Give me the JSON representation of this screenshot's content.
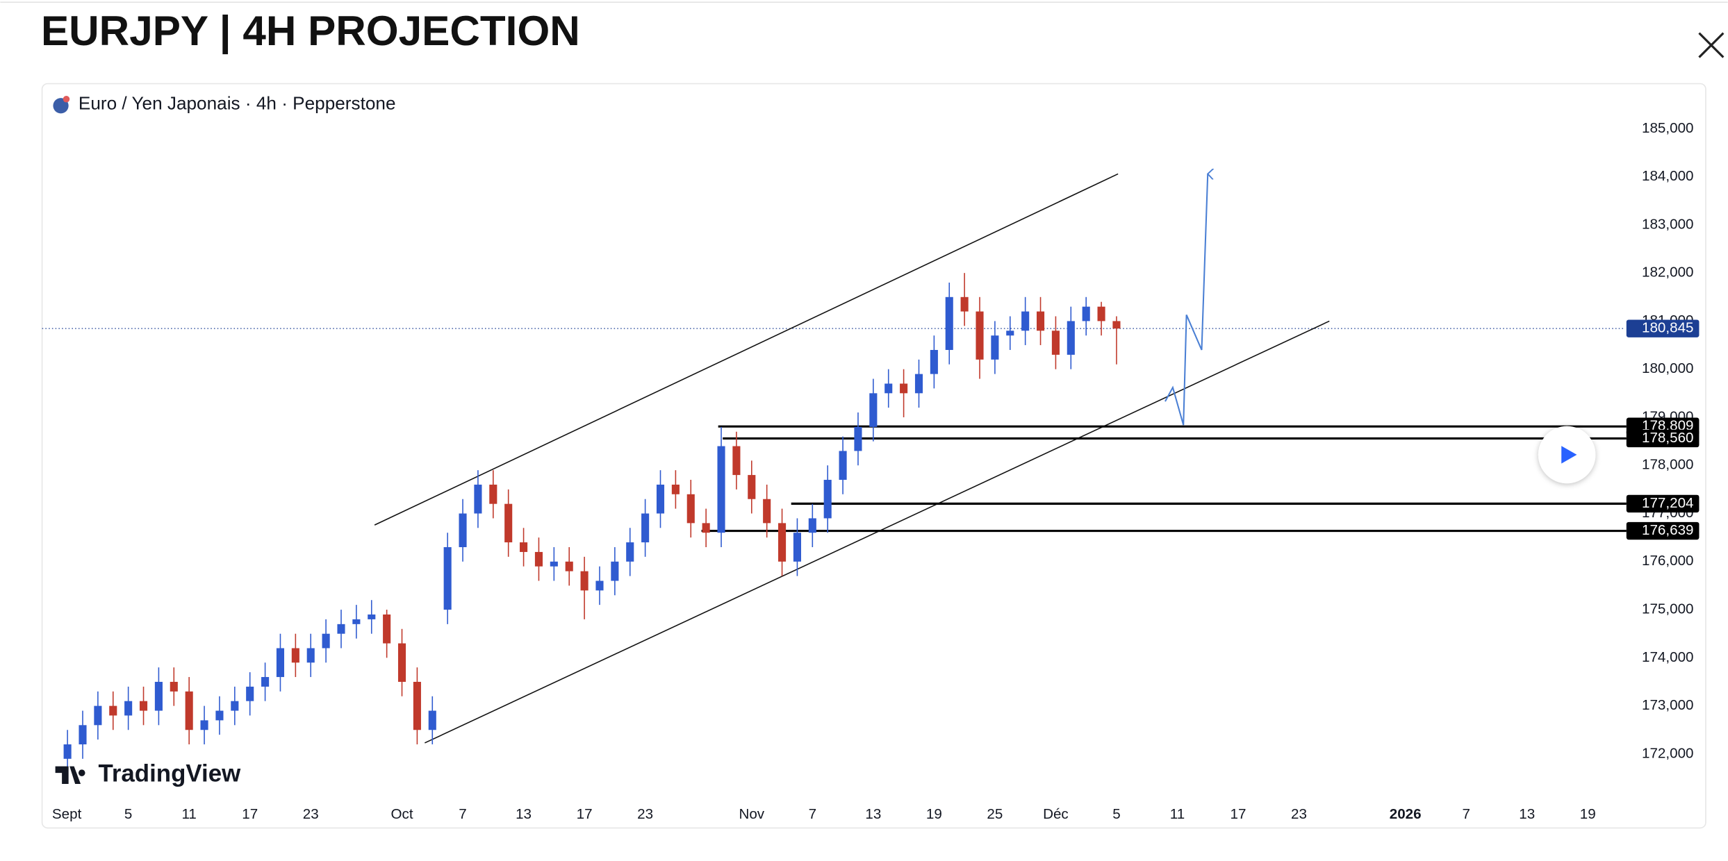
{
  "chart_data": {
    "type": "candlestick",
    "title": "EURJPY | 4H PROJECTION",
    "legend_text": "Euro / Yen Japonais · 4h · Pepperstone",
    "watermark": "TradingView",
    "up_color": "#2f5bd0",
    "down_color": "#c0392b",
    "x": [
      0,
      1,
      2,
      3,
      4,
      5,
      6,
      7,
      8,
      9,
      10,
      11,
      12,
      13,
      14,
      15,
      16,
      17,
      18,
      19,
      20,
      21,
      22,
      23,
      24,
      25,
      26,
      27,
      28,
      29,
      30,
      31,
      32,
      33,
      34,
      35,
      36,
      37,
      38,
      39,
      40,
      41,
      42,
      43,
      44,
      45,
      46,
      47,
      48,
      49,
      50,
      51,
      52,
      53,
      54,
      55,
      56,
      57,
      58,
      59,
      60,
      61,
      62,
      63,
      64,
      65,
      66,
      67,
      68,
      69
    ],
    "open": [
      171.9,
      172.2,
      172.6,
      173.0,
      172.8,
      173.1,
      172.9,
      173.5,
      173.3,
      172.5,
      172.7,
      172.9,
      173.1,
      173.4,
      173.6,
      174.2,
      173.9,
      174.2,
      174.5,
      174.7,
      174.8,
      174.9,
      174.3,
      173.5,
      172.5,
      175.0,
      176.3,
      177.0,
      177.6,
      177.2,
      176.4,
      176.2,
      175.9,
      176.0,
      175.8,
      175.4,
      175.6,
      176.0,
      176.4,
      177.0,
      177.6,
      177.4,
      176.8,
      176.6,
      178.4,
      177.8,
      177.3,
      176.8,
      176.0,
      176.6,
      176.9,
      177.7,
      178.3,
      178.8,
      179.5,
      179.7,
      179.5,
      179.9,
      180.4,
      181.5,
      181.2,
      180.2,
      180.7,
      180.8,
      181.2,
      180.8,
      180.3,
      181.0,
      181.3,
      181.0
    ],
    "high": [
      172.5,
      172.9,
      173.3,
      173.3,
      173.4,
      173.4,
      173.8,
      173.8,
      173.6,
      173.0,
      173.2,
      173.4,
      173.7,
      173.9,
      174.5,
      174.5,
      174.5,
      174.8,
      175.0,
      175.1,
      175.2,
      175.0,
      174.6,
      173.8,
      173.2,
      176.6,
      177.3,
      177.9,
      177.9,
      177.5,
      176.7,
      176.5,
      176.3,
      176.3,
      176.1,
      175.9,
      176.3,
      176.7,
      177.3,
      177.9,
      177.9,
      177.7,
      177.1,
      178.8,
      178.7,
      178.1,
      177.6,
      177.1,
      176.9,
      177.2,
      178.0,
      178.6,
      179.1,
      179.8,
      180.0,
      180.0,
      180.2,
      180.7,
      181.8,
      182.0,
      181.5,
      181.0,
      181.1,
      181.5,
      181.5,
      181.1,
      181.3,
      181.5,
      181.4,
      181.1
    ],
    "low": [
      171.6,
      171.9,
      172.3,
      172.5,
      172.5,
      172.6,
      172.6,
      173.0,
      172.2,
      172.2,
      172.4,
      172.6,
      172.8,
      173.1,
      173.3,
      173.6,
      173.6,
      173.9,
      174.2,
      174.4,
      174.5,
      174.0,
      173.2,
      172.2,
      172.2,
      174.7,
      176.0,
      176.7,
      176.9,
      176.1,
      175.9,
      175.6,
      175.6,
      175.5,
      174.8,
      175.1,
      175.3,
      175.7,
      176.1,
      176.7,
      177.1,
      176.5,
      176.3,
      176.3,
      177.5,
      177.0,
      176.5,
      175.7,
      175.7,
      176.3,
      176.6,
      177.4,
      178.0,
      178.5,
      179.2,
      179.0,
      179.2,
      179.6,
      180.1,
      180.9,
      179.8,
      179.9,
      180.4,
      180.5,
      180.5,
      180.0,
      180.0,
      180.7,
      180.7,
      180.1
    ],
    "close": [
      172.2,
      172.6,
      173.0,
      172.8,
      173.1,
      172.9,
      173.5,
      173.3,
      172.5,
      172.7,
      172.9,
      173.1,
      173.4,
      173.6,
      174.2,
      173.9,
      174.2,
      174.5,
      174.7,
      174.8,
      174.9,
      174.3,
      173.5,
      172.5,
      172.9,
      176.3,
      177.0,
      177.6,
      177.2,
      176.4,
      176.2,
      175.9,
      176.0,
      175.8,
      175.4,
      175.6,
      176.0,
      176.4,
      177.0,
      177.6,
      177.4,
      176.8,
      176.6,
      178.4,
      177.8,
      177.3,
      176.8,
      176.0,
      176.6,
      176.9,
      177.7,
      178.3,
      178.8,
      179.5,
      179.7,
      179.5,
      179.9,
      180.4,
      181.5,
      181.2,
      180.2,
      180.7,
      180.8,
      181.2,
      180.8,
      180.3,
      181.0,
      181.3,
      181.0,
      180.845
    ],
    "xlim": [
      -1.67,
      101.74
    ],
    "xticks": [
      {
        "value": 0,
        "label": "Sept"
      },
      {
        "value": 4,
        "label": "5"
      },
      {
        "value": 8,
        "label": "11"
      },
      {
        "value": 12,
        "label": "17"
      },
      {
        "value": 16,
        "label": "23"
      },
      {
        "value": 22,
        "label": "Oct"
      },
      {
        "value": 26,
        "label": "7"
      },
      {
        "value": 30,
        "label": "13"
      },
      {
        "value": 34,
        "label": "17"
      },
      {
        "value": 38,
        "label": "23"
      },
      {
        "value": 45,
        "label": "Nov"
      },
      {
        "value": 49,
        "label": "7"
      },
      {
        "value": 53,
        "label": "13"
      },
      {
        "value": 57,
        "label": "19"
      },
      {
        "value": 61,
        "label": "25"
      },
      {
        "value": 65,
        "label": "Déc"
      },
      {
        "value": 69,
        "label": "5"
      },
      {
        "value": 73,
        "label": "11"
      },
      {
        "value": 77,
        "label": "17"
      },
      {
        "value": 81,
        "label": "23"
      },
      {
        "value": 88,
        "label": "2026"
      },
      {
        "value": 92,
        "label": "7"
      },
      {
        "value": 96,
        "label": "13"
      },
      {
        "value": 100,
        "label": "19"
      }
    ],
    "ylim": [
      171.08,
      185.89
    ],
    "yticks": [
      {
        "value": 172,
        "label": "172,000"
      },
      {
        "value": 173,
        "label": "173,000"
      },
      {
        "value": 174,
        "label": "174,000"
      },
      {
        "value": 175,
        "label": "175,000"
      },
      {
        "value": 176,
        "label": "176,000"
      },
      {
        "value": 177,
        "label": "177,000"
      },
      {
        "value": 178,
        "label": "178,000"
      },
      {
        "value": 179,
        "label": "179,000"
      },
      {
        "value": 180,
        "label": "180,000"
      },
      {
        "value": 181,
        "label": "181,000"
      },
      {
        "value": 182,
        "label": "182,000"
      },
      {
        "value": 183,
        "label": "183,000"
      },
      {
        "value": 184,
        "label": "184,000"
      },
      {
        "value": 185,
        "label": "185,000"
      }
    ],
    "last_price": {
      "value": 180.845,
      "label": "180,845",
      "color": "#1c3f94"
    },
    "levels": [
      {
        "value": 178.809,
        "label": "178,809",
        "start": 42.8
      },
      {
        "value": 178.56,
        "label": "178,560",
        "start": 43.1
      },
      {
        "value": 177.204,
        "label": "177,204",
        "start": 47.6
      },
      {
        "value": 176.639,
        "label": "176,639",
        "start": 41.7
      }
    ],
    "channel": [
      {
        "x": [
          20.2,
          69.1
        ],
        "y": [
          176.76,
          184.06
        ]
      },
      {
        "x": [
          23.5,
          83.0
        ],
        "y": [
          172.23,
          181.0
        ]
      }
    ],
    "projection": {
      "x": [
        72.2,
        72.7,
        73.4,
        73.6,
        74.6,
        75.0
      ],
      "y": [
        179.33,
        179.62,
        178.84,
        181.13,
        180.4,
        184.06
      ],
      "color": "#4a7fd4"
    }
  }
}
